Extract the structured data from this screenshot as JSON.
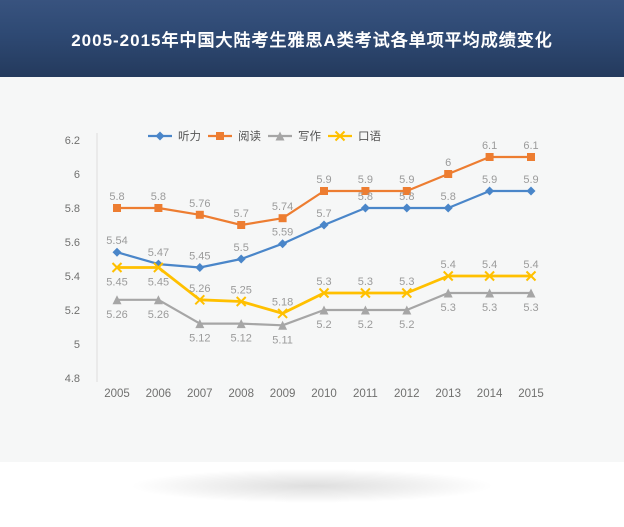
{
  "header": {
    "title": "2005-2015年中国大陆考生雅思A类考试各单项平均成绩变化"
  },
  "chart_data": {
    "type": "line",
    "title": "2005-2015年中国大陆考生雅思A类考试各单项平均成绩变化",
    "categories": [
      "2005",
      "2006",
      "2007",
      "2008",
      "2009",
      "2010",
      "2011",
      "2012",
      "2013",
      "2014",
      "2015"
    ],
    "xlabel": "",
    "ylabel": "",
    "ylim": [
      4.8,
      6.2
    ],
    "y_ticks": [
      "6.2",
      "6",
      "5.8",
      "5.6",
      "5.4",
      "5.2",
      "5",
      "4.8"
    ],
    "grid": false,
    "legend_position": "top",
    "axis_color": "#dedede",
    "tick_label_color": "#70706f",
    "data_label_color": "#9b9b9b",
    "legend_text_color": "#555555",
    "series": [
      {
        "name": "听力",
        "color": "#4a86c9",
        "marker": "diamond",
        "values": [
          5.54,
          5.47,
          5.45,
          5.5,
          5.59,
          5.7,
          5.8,
          5.8,
          5.8,
          5.9,
          5.9
        ],
        "labels": [
          "5.54",
          "5.47",
          "5.45",
          "5.5",
          "5.59",
          "5.7",
          "5.8",
          "5.8",
          "5.8",
          "5.9",
          "5.9"
        ],
        "label_side": [
          "above",
          "above",
          "above",
          "above",
          "above",
          "above",
          "above",
          "above",
          "above",
          "above",
          "above"
        ]
      },
      {
        "name": "阅读",
        "color": "#ed7d31",
        "marker": "square",
        "values": [
          5.8,
          5.8,
          5.76,
          5.7,
          5.74,
          5.9,
          5.9,
          5.9,
          6,
          6.1,
          6.1
        ],
        "labels": [
          "5.8",
          "5.8",
          "5.76",
          "5.7",
          "5.74",
          "5.9",
          "5.9",
          "5.9",
          "6",
          "6.1",
          "6.1"
        ],
        "label_side": [
          "above",
          "above",
          "above",
          "above",
          "above",
          "above",
          "above",
          "above",
          "above",
          "above",
          "above"
        ]
      },
      {
        "name": "写作",
        "color": "#a6a6a6",
        "marker": "triangle",
        "values": [
          5.26,
          5.26,
          5.12,
          5.12,
          5.11,
          5.2,
          5.2,
          5.2,
          5.3,
          5.3,
          5.3
        ],
        "labels": [
          "5.26",
          "5.26",
          "5.12",
          "5.12",
          "5.11",
          "5.2",
          "5.2",
          "5.2",
          "5.3",
          "5.3",
          "5.3"
        ],
        "label_side": [
          "below",
          "below",
          "below",
          "below",
          "below",
          "below",
          "below",
          "below",
          "below",
          "below",
          "below"
        ]
      },
      {
        "name": "口语",
        "color": "#ffc000",
        "marker": "x",
        "values": [
          5.45,
          5.45,
          5.26,
          5.25,
          5.18,
          5.3,
          5.3,
          5.3,
          5.4,
          5.4,
          5.4
        ],
        "labels": [
          "5.45",
          "5.45",
          "5.26",
          "5.25",
          "5.18",
          "5.3",
          "5.3",
          "5.3",
          "5.4",
          "5.4",
          "5.4"
        ],
        "label_side": [
          "below",
          "below",
          "above",
          "above",
          "above",
          "above",
          "above",
          "above",
          "above",
          "above",
          "above"
        ]
      }
    ]
  }
}
